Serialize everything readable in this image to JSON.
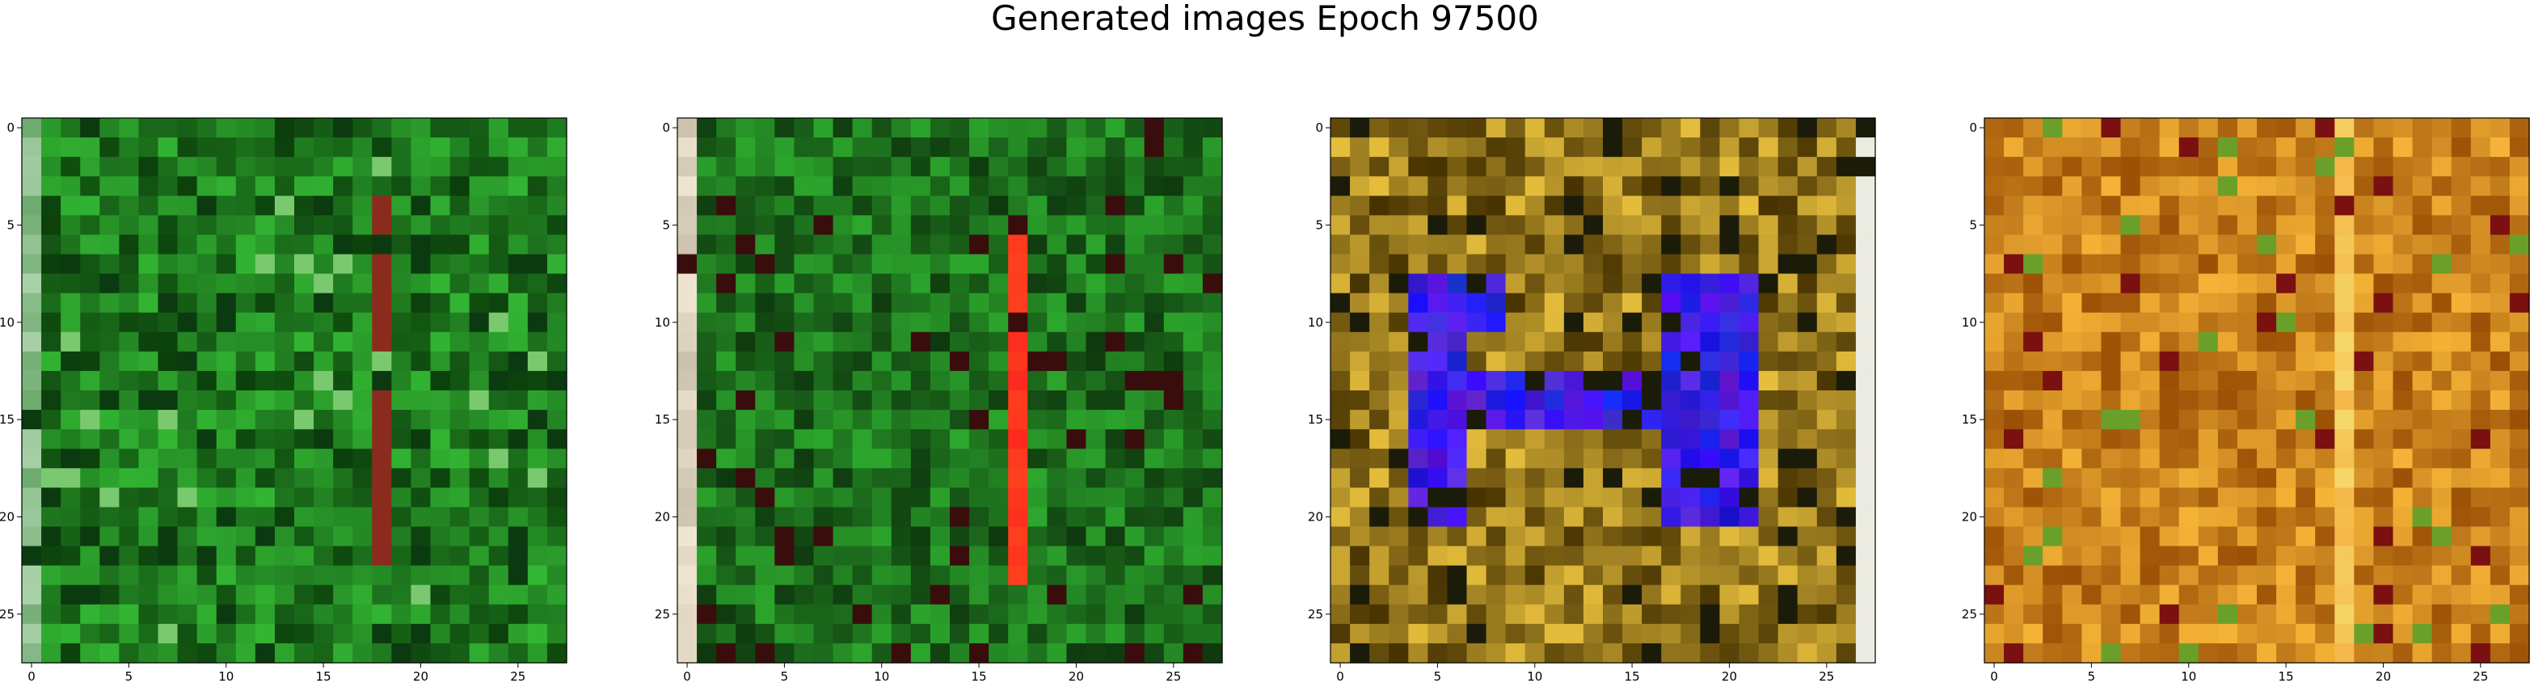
{
  "title": "Generated images Epoch 97500",
  "chart_data": [
    {
      "type": "heatmap",
      "description_palette": "green",
      "grid": "28x28 RGB pixel image",
      "xticks": [
        0,
        5,
        10,
        15,
        20,
        25
      ],
      "yticks": [
        0,
        5,
        10,
        15,
        20,
        25
      ],
      "xlim": [
        -0.5,
        27.5
      ],
      "ylim": [
        27.5,
        -0.5
      ],
      "base_color": "#1f7a1f",
      "accent_colors": [
        "#8b2b1d",
        "#0b3a10",
        "#7bc96f"
      ]
    },
    {
      "type": "heatmap",
      "description_palette": "green-with-red-stripe",
      "grid": "28x28 RGB pixel image",
      "xticks": [
        0,
        5,
        10,
        15,
        20,
        25
      ],
      "yticks": [
        0,
        5,
        10,
        15,
        20,
        25
      ],
      "xlim": [
        -0.5,
        27.5
      ],
      "ylim": [
        27.5,
        -0.5
      ],
      "base_color": "#1d6f1d",
      "accent_colors": [
        "#ff2a2a",
        "#3a0d0d",
        "#ead8c8"
      ]
    },
    {
      "type": "heatmap",
      "description_palette": "ochre-with-blue-shape",
      "grid": "28x28 RGB pixel image",
      "xticks": [
        0,
        5,
        10,
        15,
        20,
        25
      ],
      "yticks": [
        0,
        5,
        10,
        15,
        20,
        25
      ],
      "xlim": [
        -0.5,
        27.5
      ],
      "ylim": [
        27.5,
        -0.5
      ],
      "base_color": "#9a7a18",
      "accent_colors": [
        "#1a10e8",
        "#1b1b0a",
        "#e8e8e0"
      ]
    },
    {
      "type": "heatmap",
      "description_palette": "orange-brown",
      "grid": "28x28 RGB pixel image",
      "xticks": [
        0,
        5,
        10,
        15,
        20,
        25
      ],
      "yticks": [
        0,
        5,
        10,
        15,
        20,
        25
      ],
      "xlim": [
        -0.5,
        27.5
      ],
      "ylim": [
        27.5,
        -0.5
      ],
      "base_color": "#c07a18",
      "accent_colors": [
        "#f2c050",
        "#7a1010",
        "#6aa02a"
      ]
    }
  ]
}
